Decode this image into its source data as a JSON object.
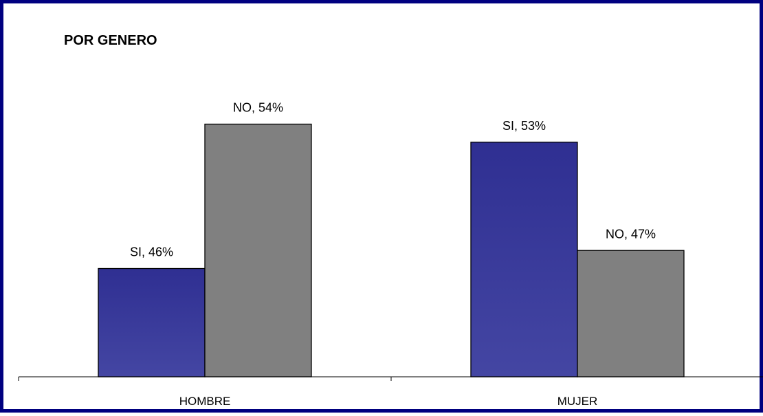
{
  "chart_data": {
    "type": "bar",
    "title": "POR GENERO",
    "xlabel": "",
    "ylabel": "",
    "categories": [
      "HOMBRE",
      "MUJER"
    ],
    "series": [
      {
        "values": [
          46,
          53
        ],
        "color": "#333399",
        "labels": [
          "SI, 46%",
          "SI, 53%"
        ]
      },
      {
        "values": [
          54,
          47
        ],
        "color": "#808080",
        "labels": [
          "NO, 54%",
          "NO, 47%"
        ]
      }
    ],
    "ylim": [
      40,
      56
    ],
    "grid": false,
    "legend": "none"
  }
}
